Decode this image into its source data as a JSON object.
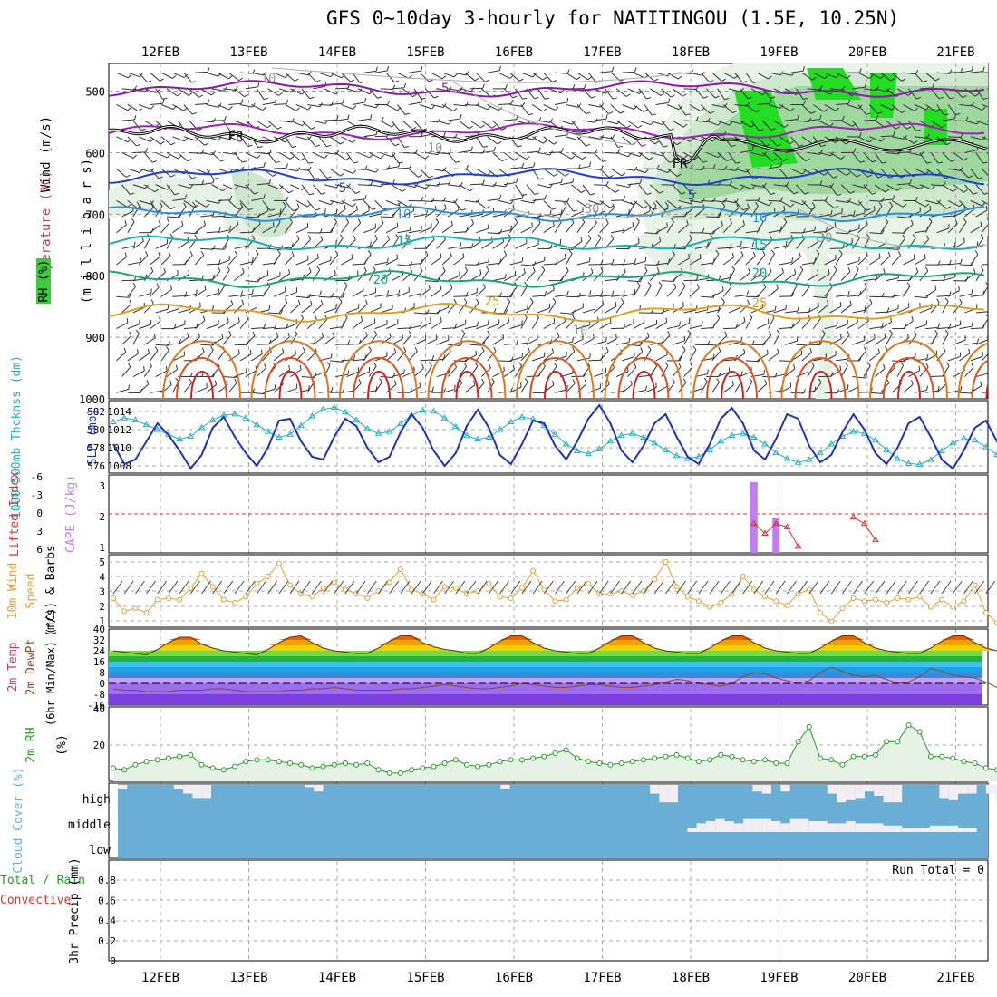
{
  "title": "GFS 0~10day 3-hourly for NATITINGOU (1.5E, 10.25N)",
  "dates": [
    "12FEB",
    "13FEB",
    "14FEB",
    "15FEB",
    "16FEB",
    "17FEB",
    "18FEB",
    "19FEB",
    "20FEB",
    "21FEB"
  ],
  "run_total_text": "Run Total = 0",
  "panels": {
    "upper": {
      "ylabel_wind": "Wind (m/s)",
      "ylabel_temp": "Temperature (°C)",
      "ylabel_rh": "RH (%)",
      "ylabel_mb": "(m i l l i b a r s)",
      "yticks": [
        "500",
        "600",
        "700",
        "800",
        "900",
        "1000"
      ],
      "labels": {
        "fr": "FR",
        "t_m5": "-5",
        "t_5": "5",
        "t_10": "10",
        "t_15": "15",
        "t_20": "20",
        "t_25": "25",
        "rh_10": "10",
        "rh_30": "30"
      }
    },
    "thick": {
      "ylabel_left": "1000-500mb Thcknss (dm)",
      "ylabel_right": "SLP (mb)",
      "left_ticks": [
        "582",
        "580",
        "578",
        "576"
      ],
      "right_ticks": [
        "1014",
        "1012",
        "1010",
        "1008"
      ]
    },
    "cape": {
      "ylabel_left": "Lifted Index",
      "ylabel_right": "CAPE (J/kg)",
      "left_ticks": [
        "-6",
        "-3",
        "0",
        "3",
        "6"
      ],
      "right_ticks": [
        "3",
        "2",
        "1"
      ]
    },
    "wind": {
      "ylabel_a": "10m Wind",
      "ylabel_b": "Speed",
      "ylabel_c": "(m/s) & Barbs",
      "yticks": [
        "5",
        "4",
        "3",
        "2",
        "1"
      ]
    },
    "temp": {
      "ylabel_a": "2m Temp",
      "ylabel_b": "2m DewPt",
      "ylabel_c": "(6hr Min/Max) (°C)",
      "yticks": [
        "40",
        "32",
        "24",
        "16",
        "8",
        "0",
        "-8",
        "-16"
      ]
    },
    "rh": {
      "ylabel_a": "2m RH",
      "ylabel_b": "(%)",
      "yticks": [
        "40",
        "20"
      ]
    },
    "cloud": {
      "ylabel": "Cloud Cover (%)",
      "levels": [
        "high",
        "middle",
        "low"
      ]
    },
    "precip": {
      "ylabel_a": "Total / Rain",
      "ylabel_b": "Convective",
      "ylabel_c": "3hr Precip (mm)",
      "yticks": [
        "0.8",
        "0.6",
        "0.4",
        "0.2",
        "0"
      ]
    }
  },
  "colors": {
    "thickness": "#20b2c0",
    "slp": "#2030c0",
    "wind_speed": "#e8a030",
    "rh2m": "#2a9a2a",
    "cloud": "#6aaed6",
    "cape": "#c07ef0",
    "lifted": "#e03030",
    "rh_green": "#40c840"
  },
  "chart_data": [
    {
      "type": "line",
      "title": "1000-500mb Thickness (dm)",
      "x_step_hours": 3,
      "ylim": [
        575.5,
        583
      ],
      "values": [
        580.8,
        581.2,
        581.0,
        580.5,
        580.0,
        579.5,
        579.0,
        579.3,
        580.2,
        581.0,
        581.5,
        581.6,
        581.2,
        580.5,
        579.8,
        579.2,
        579.5,
        580.4,
        581.4,
        582.1,
        582.3,
        581.8,
        581.0,
        580.1,
        579.6,
        579.8,
        580.6,
        581.5,
        582.0,
        581.9,
        581.2,
        580.3,
        579.4,
        579.0,
        579.2,
        580.0,
        580.8,
        581.3,
        581.1,
        580.4,
        579.5,
        578.5,
        577.8,
        577.5,
        578.0,
        578.8,
        579.4,
        579.6,
        579.2,
        578.6,
        577.9,
        577.3,
        577.0,
        577.2,
        577.9,
        578.8,
        579.4,
        579.6,
        579.2,
        578.5,
        577.6,
        577.0,
        576.6,
        576.9,
        577.6,
        578.5,
        579.3,
        579.8,
        579.6,
        578.9,
        577.9,
        577.0,
        576.5,
        576.4,
        576.9,
        577.8,
        578.6,
        579.1,
        578.9,
        578.2,
        577.4,
        576.8,
        576.6,
        577.0,
        577.9,
        578.8,
        579.3,
        579.1
      ]
    },
    {
      "type": "line",
      "title": "SLP (mb)",
      "x_step_hours": 3,
      "ylim": [
        1007,
        1015
      ],
      "values": [
        1010.2,
        1008.0,
        1008.5,
        1010.5,
        1012.5,
        1011.2,
        1009.5,
        1007.5,
        1009.0,
        1012.0,
        1013.2,
        1011.0,
        1009.2,
        1007.8,
        1009.8,
        1012.8,
        1013.0,
        1010.5,
        1008.8,
        1008.5,
        1011.0,
        1013.0,
        1012.2,
        1009.8,
        1008.2,
        1008.8,
        1011.5,
        1013.5,
        1012.0,
        1009.5,
        1007.8,
        1009.2,
        1012.2,
        1014.0,
        1012.0,
        1009.0,
        1008.0,
        1010.2,
        1012.8,
        1012.5,
        1010.0,
        1008.5,
        1010.5,
        1013.0,
        1014.5,
        1012.5,
        1009.5,
        1008.2,
        1010.0,
        1012.5,
        1013.5,
        1011.0,
        1008.8,
        1008.0,
        1010.2,
        1013.0,
        1014.2,
        1012.5,
        1009.5,
        1008.5,
        1010.8,
        1013.5,
        1013.0,
        1010.0,
        1008.2,
        1009.0,
        1011.5,
        1013.5,
        1011.8,
        1009.2,
        1008.0,
        1009.8,
        1012.5,
        1013.2,
        1011.0,
        1008.5,
        1007.5,
        1009.5,
        1012.0,
        1012.8,
        1010.5,
        1008.2,
        1007.8,
        1010.0,
        1012.8,
        1011.8,
        1009.5,
        1012.5
      ]
    },
    {
      "type": "bar",
      "title": "CAPE (J/kg)",
      "x_step_hours": 3,
      "ylim": [
        1,
        3.2
      ],
      "values": [
        1,
        1,
        1,
        1,
        1,
        1,
        1,
        1,
        1,
        1,
        1,
        1,
        1,
        1,
        1,
        1,
        1,
        1,
        1,
        1,
        1,
        1,
        1,
        1,
        1,
        1,
        1,
        1,
        1,
        1,
        1,
        1,
        1,
        1,
        1,
        1,
        1,
        1,
        1,
        1,
        1,
        1,
        1,
        1,
        1,
        1,
        1,
        1,
        1,
        1,
        1,
        1,
        1,
        1,
        1,
        1,
        1,
        1,
        3.0,
        1,
        2.0,
        1,
        1,
        1,
        1,
        1,
        1,
        1,
        1,
        1,
        1,
        1,
        1,
        1,
        1,
        1,
        1,
        1,
        1,
        1,
        1,
        1,
        1,
        1,
        1,
        1,
        1,
        1
      ]
    },
    {
      "type": "line",
      "title": "Lifted Index",
      "x_step_hours": 3,
      "ylim": [
        6,
        -6
      ],
      "values": [
        null,
        null,
        null,
        null,
        null,
        null,
        null,
        null,
        null,
        null,
        null,
        null,
        null,
        null,
        null,
        null,
        null,
        null,
        null,
        null,
        null,
        null,
        null,
        null,
        null,
        null,
        null,
        null,
        null,
        null,
        null,
        null,
        null,
        null,
        null,
        null,
        null,
        null,
        null,
        null,
        null,
        null,
        null,
        null,
        null,
        null,
        null,
        null,
        null,
        null,
        null,
        null,
        null,
        null,
        null,
        null,
        null,
        null,
        1.5,
        3.0,
        1.5,
        2.0,
        5.0,
        null,
        null,
        null,
        null,
        0.5,
        1.5,
        4.0,
        null,
        null,
        null,
        null,
        null,
        null,
        null,
        null,
        null,
        null,
        null,
        null,
        null,
        null,
        null,
        null,
        null,
        null
      ]
    },
    {
      "type": "line",
      "title": "10m Wind Speed (m/s)",
      "x_step_hours": 3,
      "ylim": [
        0.5,
        5.5
      ],
      "values": [
        2.5,
        1.6,
        1.8,
        1.5,
        2.4,
        2.5,
        2.4,
        3.2,
        4.2,
        3.3,
        2.4,
        2.2,
        2.6,
        3.5,
        4.0,
        4.9,
        3.4,
        2.8,
        2.6,
        3.2,
        3.6,
        3.1,
        2.8,
        2.5,
        3.0,
        3.6,
        4.5,
        3.1,
        2.8,
        2.4,
        3.3,
        3.2,
        2.8,
        3.0,
        3.5,
        2.6,
        2.5,
        3.2,
        4.4,
        3.1,
        2.3,
        2.4,
        3.2,
        3.5,
        2.8,
        2.8,
        3.0,
        2.7,
        3.0,
        3.8,
        5.0,
        3.3,
        2.6,
        2.3,
        1.9,
        2.2,
        2.8,
        4.0,
        3.1,
        2.6,
        2.3,
        2.0,
        2.8,
        3.1,
        1.5,
        0.9,
        1.8,
        2.5,
        2.3,
        2.4,
        2.2,
        2.5,
        2.4,
        2.6,
        1.9,
        2.4,
        1.9,
        2.3,
        3.4,
        1.5,
        0.8,
        1.8,
        2.3,
        2.2,
        1.7,
        2.2,
        1.9,
        1.8,
        2.4,
        2.2,
        2.0,
        1.7,
        1.9,
        2.8
      ]
    },
    {
      "type": "line",
      "title": "2m Temp (°C)",
      "x_step_hours": 3,
      "ylim": [
        -16,
        40
      ],
      "values": [
        24,
        23,
        22,
        21,
        25,
        30,
        34,
        34,
        29,
        26,
        24,
        23,
        22,
        21,
        25,
        30,
        34,
        35,
        30,
        26,
        24,
        23,
        22,
        22,
        26,
        31,
        35,
        35,
        30,
        27,
        25,
        24,
        22,
        22,
        26,
        31,
        35,
        35,
        30,
        26,
        24,
        23,
        22,
        22,
        26,
        31,
        35,
        35,
        30,
        26,
        24,
        23,
        22,
        22,
        26,
        31,
        35,
        35,
        30,
        26,
        24,
        23,
        22,
        22,
        26,
        31,
        35,
        35,
        30,
        26,
        24,
        23,
        22,
        22,
        26,
        31,
        35,
        35,
        30,
        26,
        24,
        23,
        22,
        22,
        26,
        31,
        35,
        34
      ]
    },
    {
      "type": "line",
      "title": "2m DewPt (°C)",
      "x_step_hours": 3,
      "ylim": [
        -16,
        40
      ],
      "values": [
        -4,
        -5,
        -5,
        -6,
        -6,
        -6,
        -5,
        -5,
        -5,
        -4,
        -4,
        -5,
        -6,
        -6,
        -6,
        -6,
        -5,
        -5,
        -4,
        -4,
        -3,
        -4,
        -5,
        -5,
        -5,
        -5,
        -4,
        -4,
        -3,
        -2,
        -1,
        -2,
        -3,
        -4,
        -4,
        -3,
        -2,
        0,
        -1,
        -2,
        -3,
        -3,
        -2,
        -1,
        -1,
        -2,
        -3,
        -3,
        -2,
        -1,
        1,
        3,
        2,
        0,
        -1,
        -2,
        0,
        5,
        8,
        7,
        4,
        2,
        0,
        2,
        8,
        12,
        9,
        6,
        5,
        6,
        3,
        0,
        1,
        5,
        11,
        9,
        6,
        5,
        4,
        1,
        -3,
        -4,
        -4,
        -5,
        -5,
        -5,
        -4,
        -4
      ]
    },
    {
      "type": "area",
      "title": "2m RH (%)",
      "x_step_hours": 3,
      "ylim": [
        0,
        45
      ],
      "values": [
        8,
        7,
        10,
        12,
        13,
        14,
        15,
        16,
        10,
        8,
        7,
        9,
        12,
        13,
        13,
        12,
        11,
        10,
        8,
        9,
        10,
        11,
        10,
        11,
        7,
        5,
        5,
        7,
        8,
        9,
        11,
        13,
        10,
        9,
        10,
        12,
        13,
        13,
        14,
        15,
        17,
        19,
        14,
        12,
        11,
        10,
        11,
        12,
        13,
        14,
        15,
        16,
        14,
        12,
        13,
        16,
        15,
        13,
        12,
        13,
        11,
        11,
        24,
        33,
        14,
        13,
        10,
        15,
        15,
        16,
        24,
        24,
        34,
        30,
        15,
        15,
        14,
        12,
        11,
        8,
        7,
        6,
        6,
        9,
        10,
        11,
        12,
        13,
        14,
        15
      ]
    },
    {
      "type": "area",
      "title": "Cloud Cover (%)",
      "series": [
        {
          "name": "high",
          "values": [
            20,
            0,
            0,
            0,
            0,
            0,
            20,
            40,
            60,
            60,
            0,
            0,
            0,
            0,
            0,
            0,
            0,
            0,
            0,
            0,
            10,
            30,
            0,
            0,
            0,
            0,
            0,
            0,
            0,
            0,
            0,
            0,
            0,
            0,
            0,
            0,
            0,
            0,
            0,
            0,
            0,
            20,
            0,
            0,
            0,
            0,
            0,
            0,
            0,
            0,
            0,
            0,
            0,
            0,
            0,
            0,
            0,
            40,
            80,
            80,
            0,
            0,
            0,
            0,
            0,
            0,
            0,
            0,
            30,
            40,
            0,
            30,
            0,
            0,
            0,
            0,
            40,
            80,
            70,
            60,
            30,
            50,
            80,
            80,
            0,
            0,
            0,
            0,
            60,
            70,
            40,
            40,
            0,
            40,
            80,
            80,
            0,
            0,
            0,
            0,
            0
          ]
        },
        {
          "name": "middle",
          "values": [
            0,
            0,
            0,
            0,
            0,
            0,
            0,
            0,
            0,
            0,
            0,
            0,
            0,
            0,
            0,
            0,
            0,
            0,
            0,
            0,
            0,
            0,
            0,
            0,
            0,
            0,
            0,
            0,
            0,
            0,
            0,
            0,
            0,
            0,
            0,
            0,
            0,
            0,
            0,
            0,
            0,
            0,
            0,
            0,
            0,
            0,
            0,
            0,
            0,
            0,
            0,
            0,
            0,
            0,
            0,
            0,
            0,
            0,
            0,
            0,
            0,
            20,
            40,
            50,
            60,
            50,
            40,
            60,
            60,
            60,
            50,
            40,
            60,
            60,
            50,
            50,
            40,
            40,
            50,
            40,
            40,
            40,
            30,
            30,
            20,
            20,
            20,
            30,
            30,
            30,
            20,
            20,
            0
          ]
        },
        {
          "name": "low",
          "values": [
            0,
            0,
            0,
            0,
            0,
            0,
            0,
            0,
            0,
            0,
            0,
            0,
            0,
            0,
            0,
            0,
            0,
            0,
            0,
            0,
            0,
            0,
            0,
            0,
            0,
            0,
            0,
            0,
            0,
            0,
            0,
            0,
            0,
            0,
            0,
            0,
            0,
            0,
            0,
            0,
            0,
            0,
            0,
            0,
            0,
            0,
            0,
            0,
            0,
            0,
            0,
            0,
            0,
            0,
            0,
            0,
            0,
            0,
            0,
            0,
            0,
            0,
            0,
            0,
            0,
            0,
            0,
            0,
            0,
            0,
            0,
            0,
            0,
            0,
            0,
            0,
            0,
            0,
            0,
            0,
            0,
            0,
            0,
            0,
            0,
            0,
            0,
            0
          ]
        }
      ]
    },
    {
      "type": "bar",
      "title": "3hr Precip (mm)",
      "x_step_hours": 3,
      "ylim": [
        0,
        0.9
      ],
      "values": [
        0,
        0,
        0,
        0,
        0,
        0,
        0,
        0,
        0,
        0,
        0,
        0,
        0,
        0,
        0,
        0,
        0,
        0,
        0,
        0,
        0,
        0,
        0,
        0,
        0,
        0,
        0,
        0,
        0,
        0,
        0,
        0,
        0,
        0,
        0,
        0,
        0,
        0,
        0,
        0,
        0,
        0,
        0,
        0,
        0,
        0,
        0,
        0,
        0,
        0,
        0,
        0,
        0,
        0,
        0,
        0,
        0,
        0,
        0,
        0,
        0,
        0,
        0,
        0,
        0,
        0,
        0,
        0,
        0,
        0,
        0,
        0,
        0,
        0,
        0,
        0,
        0,
        0,
        0,
        0,
        0,
        0,
        0,
        0,
        0,
        0,
        0,
        0
      ]
    }
  ]
}
